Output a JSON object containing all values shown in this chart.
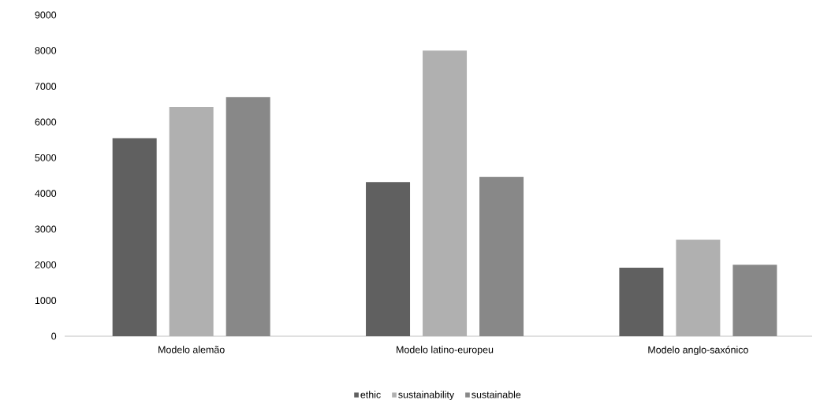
{
  "chart_data": {
    "type": "bar",
    "categories": [
      "Modelo alemão",
      "Modelo latino-europeu",
      "Modelo anglo-saxónico"
    ],
    "series": [
      {
        "name": "ethic",
        "color": "#606060",
        "values": [
          5550,
          4320,
          1920
        ]
      },
      {
        "name": "sustainability",
        "color": "#b0b0b0",
        "values": [
          6420,
          8000,
          2700
        ]
      },
      {
        "name": "sustainable",
        "color": "#888888",
        "values": [
          6700,
          4460,
          2000
        ]
      }
    ],
    "ylim": [
      0,
      9000
    ],
    "yticks": [
      0,
      1000,
      2000,
      3000,
      4000,
      5000,
      6000,
      7000,
      8000,
      9000
    ],
    "grid": false,
    "legend": "bottom"
  }
}
